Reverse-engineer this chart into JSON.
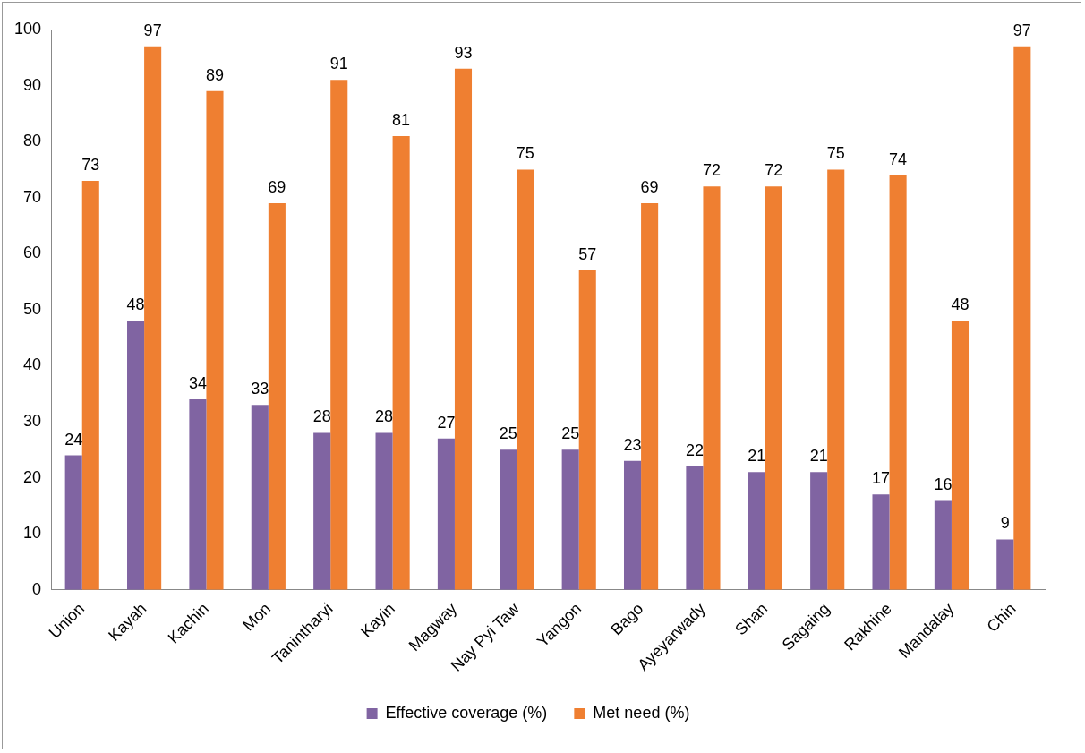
{
  "chart_data": {
    "type": "bar",
    "categories": [
      "Union",
      "Kayah",
      "Kachin",
      "Mon",
      "Tanintharyi",
      "Kayin",
      "Magway",
      "Nay Pyi Taw",
      "Yangon",
      "Bago",
      "Ayeyarwady",
      "Shan",
      "Sagaing",
      "Rakhine",
      "Mandalay",
      "Chin"
    ],
    "series": [
      {
        "name": "Effective coverage (%)",
        "color": "#8064a2",
        "values": [
          24,
          48,
          34,
          33,
          28,
          28,
          27,
          25,
          25,
          23,
          22,
          21,
          21,
          17,
          16,
          9
        ]
      },
      {
        "name": "Met need (%)",
        "color": "#ef7f31",
        "values": [
          73,
          97,
          89,
          69,
          91,
          81,
          93,
          75,
          57,
          69,
          72,
          72,
          75,
          74,
          48,
          97
        ]
      }
    ],
    "ylim": [
      0,
      100
    ],
    "yticks": [
      0,
      10,
      20,
      30,
      40,
      50,
      60,
      70,
      80,
      90,
      100
    ],
    "grid": false,
    "legend": "bottom",
    "data_labels": true
  }
}
